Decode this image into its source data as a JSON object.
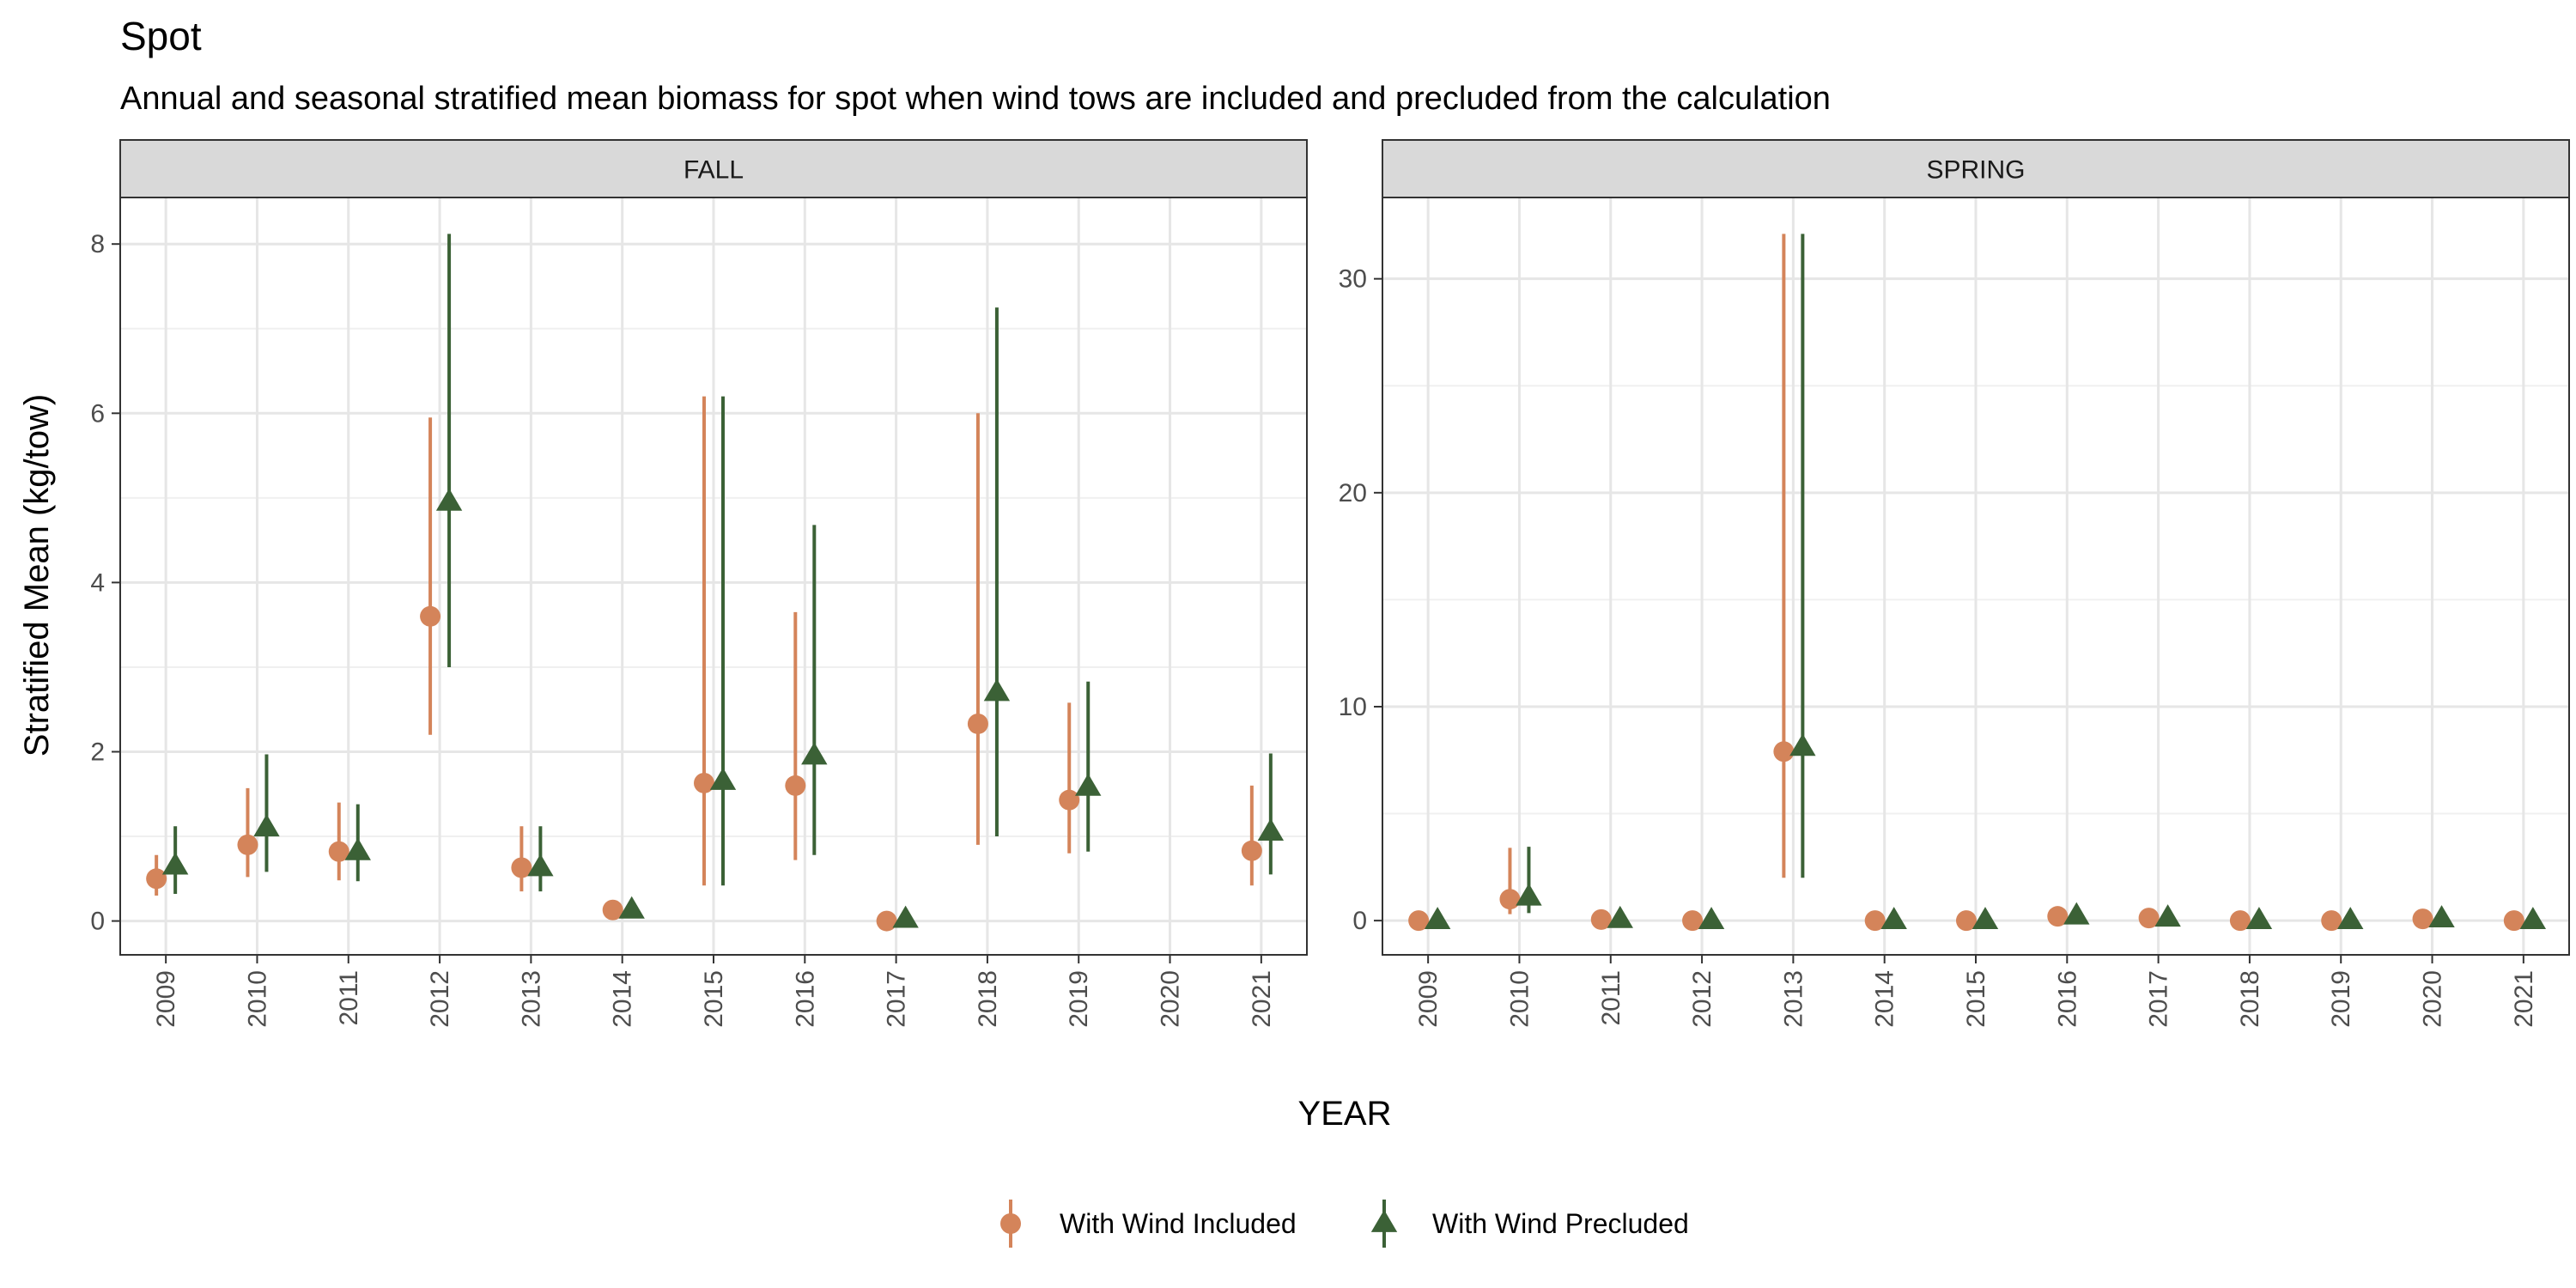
{
  "chart_data": {
    "type": "scatter",
    "title": "Spot",
    "subtitle": "Annual and seasonal stratified mean biomass for spot when wind tows are included and precluded from the calculation",
    "xlabel": "YEAR",
    "ylabel": "Stratified Mean (kg/tow)",
    "categories": [
      "2009",
      "2010",
      "2011",
      "2012",
      "2013",
      "2014",
      "2015",
      "2016",
      "2017",
      "2018",
      "2019",
      "2020",
      "2021"
    ],
    "legend": {
      "position": "bottom"
    },
    "colors": {
      "included": "#D4845A",
      "precluded": "#3B6136"
    },
    "grid": true,
    "panels": [
      {
        "name": "FALL",
        "ylim": [
          -0.4,
          8.55
        ],
        "yticks": [
          0,
          2,
          4,
          6,
          8
        ],
        "series": [
          {
            "name": "With Wind Included",
            "marker": "circle",
            "values": [
              0.5,
              0.9,
              0.82,
              3.6,
              0.63,
              0.13,
              1.63,
              1.6,
              0.0,
              2.33,
              1.43,
              null,
              0.83
            ],
            "lower": [
              0.3,
              0.52,
              0.48,
              2.2,
              0.35,
              0.05,
              0.42,
              0.72,
              0.0,
              0.9,
              0.8,
              null,
              0.42
            ],
            "upper": [
              0.78,
              1.57,
              1.4,
              5.95,
              1.12,
              0.2,
              6.2,
              3.65,
              0.0,
              6.0,
              2.58,
              null,
              1.6
            ]
          },
          {
            "name": "With Wind Precluded",
            "marker": "triangle",
            "values": [
              0.65,
              1.1,
              0.82,
              4.95,
              0.63,
              0.13,
              1.65,
              1.95,
              0.02,
              2.7,
              1.58,
              null,
              1.05
            ],
            "lower": [
              0.32,
              0.58,
              0.47,
              3.0,
              0.35,
              0.05,
              0.42,
              0.78,
              0.0,
              1.0,
              0.82,
              null,
              0.55
            ],
            "upper": [
              1.12,
              1.97,
              1.38,
              8.12,
              1.12,
              0.2,
              6.2,
              4.68,
              0.04,
              7.25,
              2.83,
              null,
              1.98
            ]
          }
        ]
      },
      {
        "name": "SPRING",
        "ylim": [
          -1.6,
          33.8
        ],
        "yticks": [
          0,
          10,
          20,
          30
        ],
        "series": [
          {
            "name": "With Wind Included",
            "marker": "circle",
            "values": [
              0.0,
              1.0,
              0.05,
              0.0,
              7.9,
              0.0,
              0.0,
              0.2,
              0.12,
              0.0,
              0.0,
              0.08,
              0.0
            ],
            "lower": [
              0.0,
              0.3,
              0.0,
              0.0,
              2.0,
              0.0,
              0.0,
              0.05,
              0.0,
              0.0,
              0.0,
              0.0,
              0.0
            ],
            "upper": [
              0.05,
              3.4,
              0.12,
              0.05,
              32.1,
              0.05,
              0.05,
              0.4,
              0.25,
              0.05,
              0.05,
              0.2,
              0.05
            ]
          },
          {
            "name": "With Wind Precluded",
            "marker": "triangle",
            "values": [
              0.0,
              1.1,
              0.05,
              0.0,
              8.1,
              0.0,
              0.0,
              0.22,
              0.12,
              0.0,
              0.0,
              0.08,
              0.0
            ],
            "lower": [
              0.0,
              0.35,
              0.0,
              0.0,
              2.0,
              0.0,
              0.0,
              0.05,
              0.0,
              0.0,
              0.0,
              0.0,
              0.0
            ],
            "upper": [
              0.05,
              3.45,
              0.12,
              0.05,
              32.1,
              0.05,
              0.05,
              0.42,
              0.25,
              0.05,
              0.05,
              0.2,
              0.05
            ]
          }
        ]
      }
    ]
  }
}
